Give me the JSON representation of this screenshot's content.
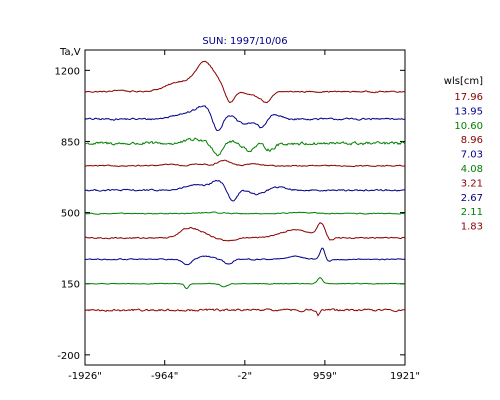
{
  "chart_data": {
    "type": "line",
    "title": "SUN: 1997/10/06",
    "ylabel": "Ta,V",
    "xlabel": "",
    "legend_title": "wls[cm]",
    "legend_placement": "right",
    "grid": false,
    "xlim": [
      -1921,
      1921
    ],
    "ylim": [
      -250,
      1300
    ],
    "x_ticks": [
      -1926,
      -964,
      -2,
      959,
      1921
    ],
    "x_tick_labels": [
      "-1926\"",
      "-964\"",
      "-2\"",
      "959\"",
      "1921\""
    ],
    "y_ticks": [
      1200,
      850,
      500,
      150,
      -200
    ],
    "y_tick_labels": [
      "1200",
      "850",
      "500",
      "150",
      "-200"
    ],
    "colors": {
      "red": "#8b0000",
      "blue": "#00008b",
      "green": "#008000"
    },
    "series": [
      {
        "name": "17.96",
        "color": "#8b0000",
        "baseline": 1095,
        "noise": 6,
        "features": [
          [
            -1500,
            8,
            60
          ],
          [
            -750,
            50,
            180
          ],
          [
            -480,
            130,
            100
          ],
          [
            -330,
            30,
            60
          ],
          [
            -180,
            -55,
            50
          ],
          [
            100,
            -20,
            80
          ],
          [
            260,
            -50,
            60
          ]
        ]
      },
      {
        "name": "13.95",
        "color": "#00008b",
        "baseline": 960,
        "noise": 8,
        "features": [
          [
            -700,
            30,
            150
          ],
          [
            -480,
            55,
            90
          ],
          [
            -330,
            -70,
            60
          ],
          [
            -200,
            25,
            60
          ],
          [
            0,
            -25,
            80
          ],
          [
            200,
            -45,
            50
          ],
          [
            350,
            20,
            80
          ]
        ]
      },
      {
        "name": "10.60",
        "color": "#008000",
        "baseline": 840,
        "noise": 14,
        "features": [
          [
            -600,
            20,
            100
          ],
          [
            -330,
            -55,
            50
          ],
          [
            -180,
            10,
            50
          ],
          [
            50,
            -35,
            60
          ],
          [
            300,
            -30,
            60
          ]
        ]
      },
      {
        "name": "8.96",
        "color": "#8b0000",
        "baseline": 730,
        "noise": 5,
        "features": [
          [
            -900,
            8,
            80
          ],
          [
            -550,
            10,
            80
          ],
          [
            -250,
            25,
            80
          ],
          [
            100,
            10,
            80
          ]
        ]
      },
      {
        "name": "7.03",
        "color": "#00008b",
        "baseline": 610,
        "noise": 7,
        "features": [
          [
            -600,
            25,
            120
          ],
          [
            -330,
            45,
            80
          ],
          [
            -150,
            -55,
            50
          ],
          [
            150,
            -20,
            80
          ],
          [
            400,
            15,
            100
          ]
        ]
      },
      {
        "name": "4.08",
        "color": "#008000",
        "baseline": 495,
        "noise": 4,
        "features": [
          [
            -400,
            5,
            150
          ],
          [
            700,
            5,
            150
          ]
        ]
      },
      {
        "name": "3.21",
        "color": "#8b0000",
        "baseline": 375,
        "noise": 6,
        "features": [
          [
            -700,
            40,
            100
          ],
          [
            -550,
            25,
            100
          ],
          [
            -200,
            -15,
            80
          ],
          [
            600,
            40,
            180
          ],
          [
            920,
            70,
            50
          ],
          [
            1000,
            -20,
            50
          ]
        ]
      },
      {
        "name": "2.67",
        "color": "#00008b",
        "baseline": 270,
        "noise": 5,
        "features": [
          [
            -700,
            -25,
            50
          ],
          [
            -480,
            15,
            80
          ],
          [
            -200,
            -25,
            50
          ],
          [
            600,
            15,
            100
          ],
          [
            930,
            55,
            30
          ],
          [
            1000,
            -10,
            40
          ]
        ]
      },
      {
        "name": "2.11",
        "color": "#008000",
        "baseline": 150,
        "noise": 3,
        "features": [
          [
            -700,
            -25,
            25
          ],
          [
            -250,
            -15,
            40
          ],
          [
            900,
            30,
            30
          ]
        ]
      },
      {
        "name": "1.83",
        "color": "#8b0000",
        "baseline": 20,
        "noise": 9,
        "features": [
          [
            880,
            -25,
            15
          ]
        ]
      }
    ]
  }
}
